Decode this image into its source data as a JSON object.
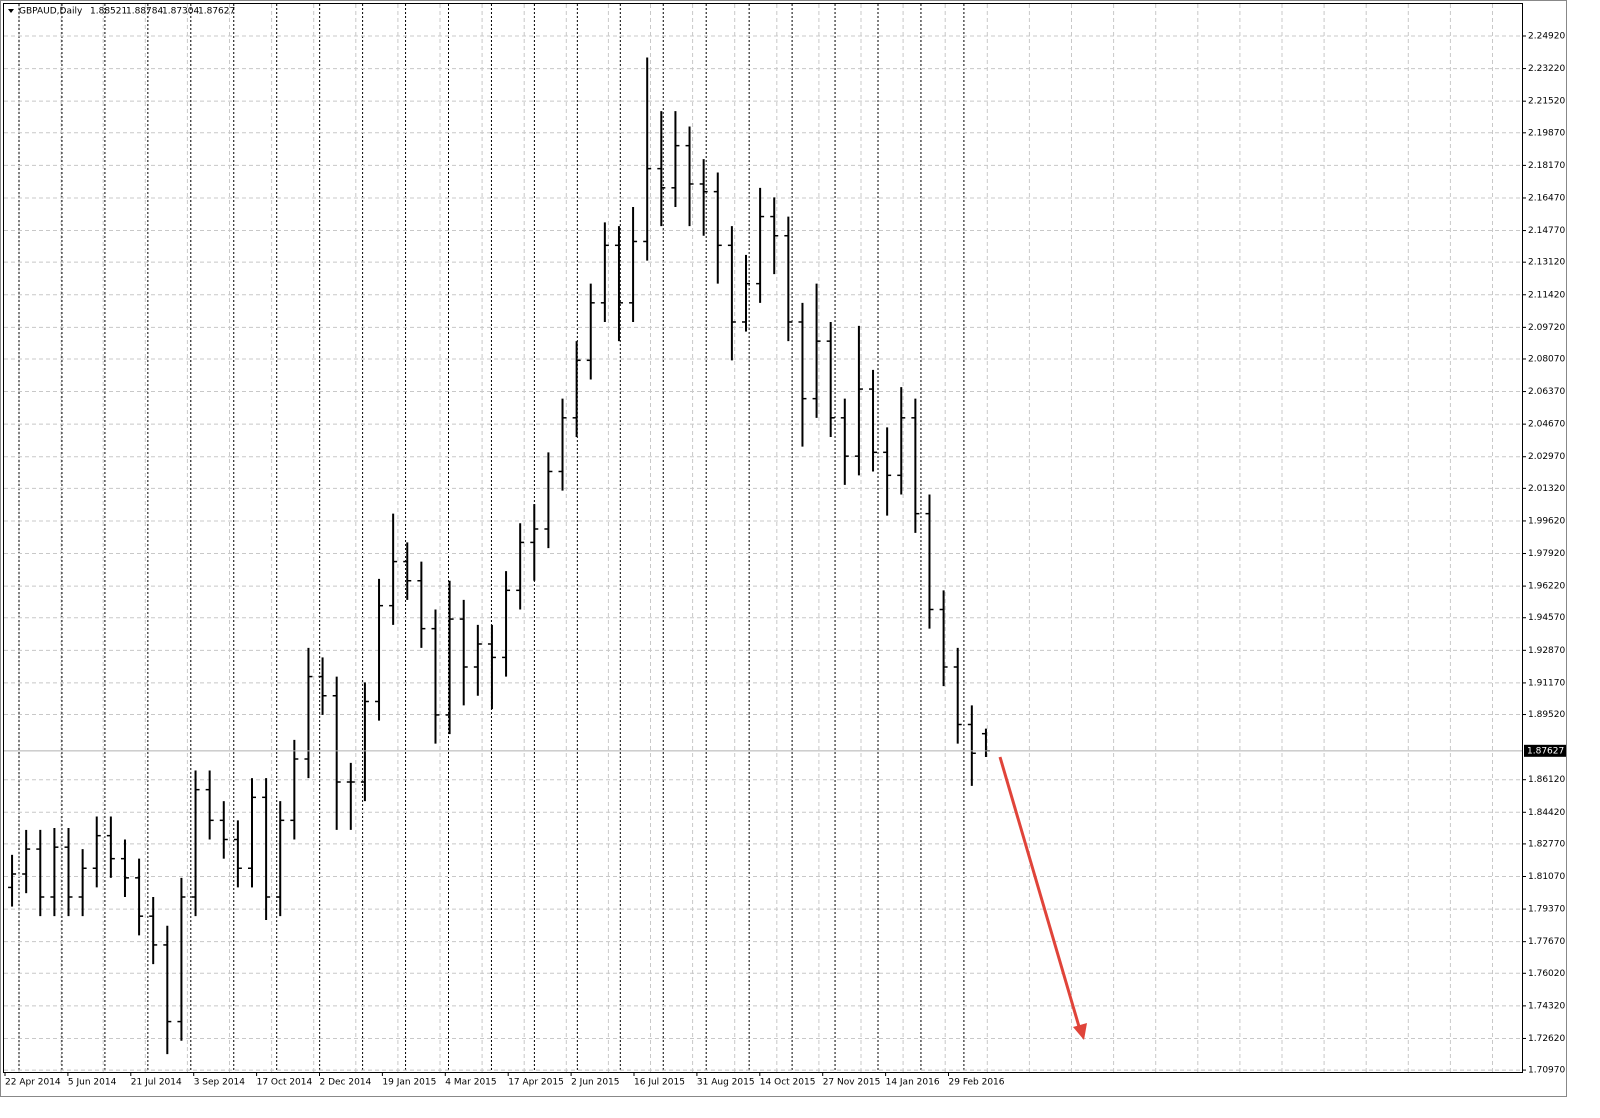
{
  "chart_data": {
    "type": "ohlc",
    "symbol": "GBPAUD,Daily",
    "color": "#000000",
    "grid": true,
    "ylim": [
      1.7087,
      2.2659
    ],
    "yticks": [
      {
        "value": 2.2492,
        "label": "2.24920"
      },
      {
        "value": 2.2322,
        "label": "2.23220"
      },
      {
        "value": 2.2152,
        "label": "2.21520"
      },
      {
        "value": 2.1987,
        "label": "2.19870"
      },
      {
        "value": 2.1817,
        "label": "2.18170"
      },
      {
        "value": 2.1647,
        "label": "2.16470"
      },
      {
        "value": 2.1477,
        "label": "2.14770"
      },
      {
        "value": 2.1312,
        "label": "2.13120"
      },
      {
        "value": 2.1142,
        "label": "2.11420"
      },
      {
        "value": 2.0972,
        "label": "2.09720"
      },
      {
        "value": 2.0807,
        "label": "2.08070"
      },
      {
        "value": 2.0637,
        "label": "2.06370"
      },
      {
        "value": 2.0467,
        "label": "2.04670"
      },
      {
        "value": 2.0297,
        "label": "2.02970"
      },
      {
        "value": 2.0132,
        "label": "2.01320"
      },
      {
        "value": 1.9962,
        "label": "1.99620"
      },
      {
        "value": 1.9792,
        "label": "1.97920"
      },
      {
        "value": 1.9622,
        "label": "1.96220"
      },
      {
        "value": 1.9457,
        "label": "1.94570"
      },
      {
        "value": 1.9287,
        "label": "1.92870"
      },
      {
        "value": 1.9117,
        "label": "1.91170"
      },
      {
        "value": 1.8952,
        "label": "1.89520"
      },
      {
        "value": 1.8612,
        "label": "1.86120"
      },
      {
        "value": 1.8442,
        "label": "1.84420"
      },
      {
        "value": 1.8277,
        "label": "1.82770"
      },
      {
        "value": 1.8107,
        "label": "1.81070"
      },
      {
        "value": 1.7937,
        "label": "1.79370"
      },
      {
        "value": 1.7767,
        "label": "1.77670"
      },
      {
        "value": 1.7602,
        "label": "1.76020"
      },
      {
        "value": 1.7432,
        "label": "1.74320"
      },
      {
        "value": 1.7262,
        "label": "1.72620"
      },
      {
        "value": 1.7097,
        "label": "1.70970"
      }
    ],
    "xticks": [
      "22 Apr 2014",
      "5 Jun 2014",
      "21 Jul 2014",
      "3 Sep 2014",
      "17 Oct 2014",
      "2 Dec 2014",
      "19 Jan 2015",
      "4 Mar 2015",
      "17 Apr 2015",
      "2 Jun 2015",
      "16 Jul 2015",
      "31 Aug 2015",
      "14 Oct 2015",
      "27 Nov 2015",
      "14 Jan 2016",
      "29 Feb 2016"
    ],
    "open": [
      1.805,
      1.812,
      1.825,
      1.8,
      1.826,
      1.8,
      1.815,
      1.832,
      1.82,
      1.81,
      1.79,
      1.775,
      1.735,
      1.8,
      1.856,
      1.84,
      1.83,
      1.815,
      1.852,
      1.8,
      1.84,
      1.872,
      1.915,
      1.905,
      1.86,
      1.86,
      1.902,
      1.952,
      1.975,
      1.965,
      1.94,
      1.895,
      1.945,
      1.92,
      1.932,
      1.925,
      1.96,
      1.985,
      1.992,
      2.022,
      2.05,
      2.08,
      2.11,
      2.14,
      2.11,
      2.142,
      2.18,
      2.17,
      2.192,
      2.172,
      2.168,
      2.14,
      2.1,
      2.12,
      2.155,
      2.145,
      2.1,
      2.06,
      2.09,
      2.05,
      2.03,
      2.065,
      2.032,
      2.02,
      2.05,
      2.0,
      1.95,
      1.92,
      1.89,
      1.88521
    ],
    "high": [
      1.822,
      1.835,
      1.835,
      1.836,
      1.836,
      1.825,
      1.842,
      1.842,
      1.83,
      1.82,
      1.8,
      1.785,
      1.81,
      1.866,
      1.866,
      1.85,
      1.84,
      1.862,
      1.862,
      1.85,
      1.882,
      1.93,
      1.925,
      1.915,
      1.87,
      1.912,
      1.966,
      2.0,
      1.985,
      1.975,
      1.95,
      1.965,
      1.955,
      1.942,
      1.942,
      1.97,
      1.995,
      2.005,
      2.032,
      2.06,
      2.09,
      2.12,
      2.152,
      2.15,
      2.16,
      2.238,
      2.21,
      2.21,
      2.202,
      2.185,
      2.178,
      2.15,
      2.135,
      2.17,
      2.165,
      2.155,
      2.11,
      2.12,
      2.1,
      2.06,
      2.098,
      2.075,
      2.045,
      2.066,
      2.06,
      2.01,
      1.96,
      1.93,
      1.9,
      1.88784
    ],
    "low": [
      1.795,
      1.802,
      1.79,
      1.79,
      1.79,
      1.79,
      1.805,
      1.81,
      1.8,
      1.78,
      1.765,
      1.718,
      1.725,
      1.79,
      1.83,
      1.82,
      1.805,
      1.805,
      1.788,
      1.79,
      1.83,
      1.862,
      1.895,
      1.835,
      1.835,
      1.85,
      1.892,
      1.942,
      1.955,
      1.93,
      1.88,
      1.885,
      1.9,
      1.905,
      1.898,
      1.915,
      1.95,
      1.965,
      1.982,
      2.012,
      2.04,
      2.07,
      2.1,
      2.09,
      2.1,
      2.132,
      2.15,
      2.16,
      2.15,
      2.145,
      2.12,
      2.08,
      2.095,
      2.11,
      2.125,
      2.09,
      2.035,
      2.05,
      2.04,
      2.015,
      2.02,
      2.022,
      1.999,
      2.01,
      1.99,
      1.94,
      1.91,
      1.88,
      1.858,
      1.87304
    ],
    "close": [
      1.812,
      1.825,
      1.8,
      1.826,
      1.8,
      1.815,
      1.832,
      1.82,
      1.81,
      1.79,
      1.775,
      1.735,
      1.8,
      1.856,
      1.84,
      1.83,
      1.815,
      1.852,
      1.8,
      1.84,
      1.872,
      1.915,
      1.905,
      1.86,
      1.86,
      1.902,
      1.952,
      1.975,
      1.965,
      1.94,
      1.895,
      1.945,
      1.92,
      1.932,
      1.925,
      1.96,
      1.985,
      1.992,
      2.022,
      2.05,
      2.08,
      2.11,
      2.14,
      2.11,
      2.142,
      2.18,
      2.17,
      2.192,
      2.172,
      2.168,
      2.14,
      2.1,
      2.12,
      2.155,
      2.145,
      2.1,
      2.06,
      2.09,
      2.05,
      2.03,
      2.065,
      2.032,
      2.02,
      2.05,
      2.0,
      1.95,
      1.92,
      1.89,
      1.875,
      1.87627
    ]
  }
}
